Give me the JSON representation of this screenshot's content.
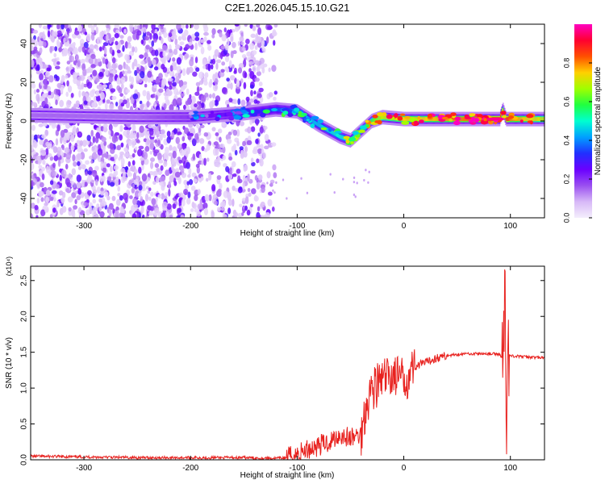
{
  "title": "C2E1.2026.045.15.10.G21",
  "chart_data": [
    {
      "type": "heatmap",
      "xlabel": "Height of straight line (km)",
      "ylabel": "Frequency (Hz)",
      "xlim": [
        -350,
        132
      ],
      "ylim": [
        -50,
        50
      ],
      "x_ticks": [
        -300,
        -200,
        -100,
        0,
        100
      ],
      "x_tick_labels": [
        "-300",
        "-200",
        "-100",
        "0",
        "100"
      ],
      "y_ticks": [
        -40,
        -20,
        0,
        20,
        40
      ],
      "y_tick_labels": [
        "-40",
        "-20",
        "0",
        "20",
        "40"
      ],
      "colorbar": {
        "label": "Normalized spectral amplitude",
        "range": [
          0,
          1
        ],
        "ticks": [
          0.0,
          0.2,
          0.4,
          0.6,
          0.8
        ],
        "tick_labels": [
          "0.0",
          "0.2",
          "0.4",
          "0.6",
          "0.8"
        ],
        "colors": [
          "#f4eefc",
          "#d7b8f7",
          "#9a4ff0",
          "#6a00ff",
          "#2030ff",
          "#00a0ff",
          "#00ffd0",
          "#20ff40",
          "#a0ff00",
          "#ffd000",
          "#ff5000",
          "#ff0030",
          "#ff00c0"
        ]
      },
      "ridge": {
        "x": [
          -350,
          -300,
          -250,
          -200,
          -150,
          -120,
          -100,
          -80,
          -60,
          -50,
          -40,
          -30,
          -20,
          0,
          20,
          50,
          80,
          90,
          93,
          96,
          100,
          132
        ],
        "y": [
          3,
          2.5,
          2,
          2,
          4,
          6,
          5,
          -2,
          -8,
          -10,
          -5,
          0,
          2,
          1,
          1,
          1,
          1,
          1,
          6,
          1,
          1,
          1
        ],
        "amplitude": [
          0.15,
          0.15,
          0.15,
          0.2,
          0.3,
          0.35,
          0.4,
          0.45,
          0.5,
          0.5,
          0.55,
          0.6,
          0.7,
          0.75,
          0.75,
          0.8,
          0.85,
          0.9,
          0.7,
          0.9,
          0.8,
          0.7
        ]
      },
      "grid": false
    },
    {
      "type": "line",
      "xlabel": "Height of straight line (km)",
      "ylabel": "SNR (10 * v/v)",
      "y_multiplier": "(x10⁴)",
      "xlim": [
        -350,
        132
      ],
      "ylim": [
        0,
        2.7
      ],
      "x_ticks": [
        -300,
        -200,
        -100,
        0,
        100
      ],
      "x_tick_labels": [
        "-300",
        "-200",
        "-100",
        "0",
        "100"
      ],
      "y_ticks": [
        0.0,
        0.5,
        1.0,
        1.5,
        2.0,
        2.5
      ],
      "y_tick_labels": [
        "0.0",
        "0.5",
        "1.0",
        "1.5",
        "2.0",
        "2.5"
      ],
      "color": "#e8221f",
      "grid": false,
      "series": [
        {
          "x": [
            -350,
            -300,
            -250,
            -200,
            -150,
            -120,
            -110,
            -100,
            -90,
            -80,
            -70,
            -60,
            -50,
            -40,
            -35,
            -30,
            -25,
            -20,
            -15,
            -10,
            -5,
            0,
            5,
            10,
            20,
            30,
            40,
            50,
            60,
            70,
            80,
            90,
            93,
            94,
            95,
            96,
            97,
            98,
            100,
            110,
            120,
            132
          ],
          "y": [
            0.05,
            0.04,
            0.03,
            0.03,
            0.03,
            0.02,
            0.03,
            0.08,
            0.15,
            0.2,
            0.25,
            0.35,
            0.3,
            0.35,
            0.8,
            1.0,
            1.05,
            1.1,
            1.15,
            1.2,
            1.15,
            1.1,
            1.2,
            1.3,
            1.35,
            1.42,
            1.45,
            1.47,
            1.48,
            1.48,
            1.48,
            1.47,
            1.4,
            1.8,
            2.4,
            0.2,
            1.3,
            1.5,
            1.45,
            1.44,
            1.43,
            1.42
          ]
        }
      ]
    }
  ]
}
